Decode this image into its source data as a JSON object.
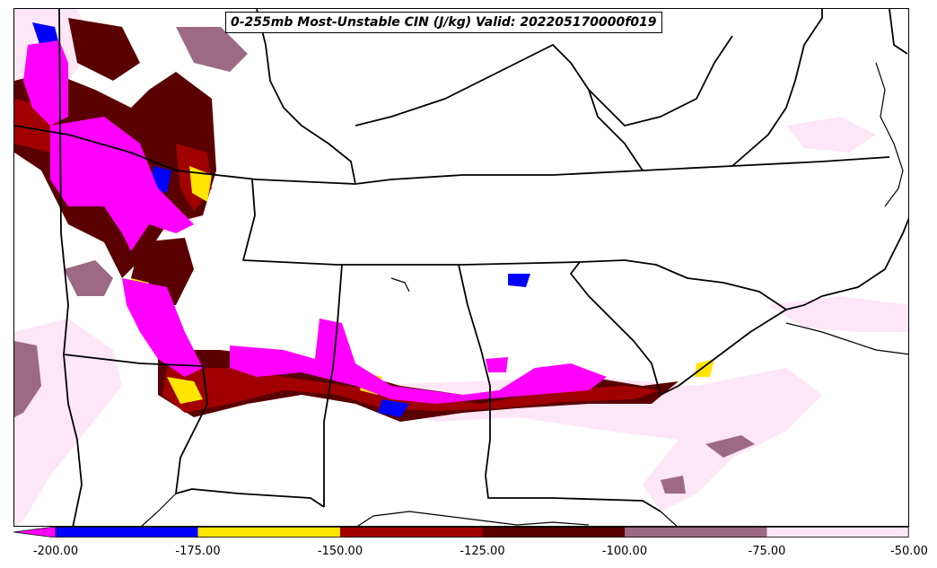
{
  "title": "0-255mb Most-Unstable CIN (J/kg) Valid: 202205170000f019",
  "colorbar": {
    "ticks": [
      "-200.00",
      "-175.00",
      "-150.00",
      "-125.00",
      "-100.00",
      "-75.00",
      "-50.00"
    ],
    "colors": [
      "#ff00ff",
      "#0000ff",
      "#ffe600",
      "#a10000",
      "#5a0000",
      "#9c6a82",
      "#fde6f6"
    ],
    "extend": "min"
  },
  "layers": {
    "cin_level_colors": {
      "lt_-200": "#ff00ff",
      "-200_to_-175": "#0000ff",
      "-175_to_-150": "#ffe600",
      "-150_to_-125": "#a10000",
      "-125_to_-100": "#5a0000",
      "-100_to_-75": "#9c6a82",
      "-75_to_-50": "#fde6f6"
    },
    "boundaries": "state-and-coast-outlines"
  }
}
